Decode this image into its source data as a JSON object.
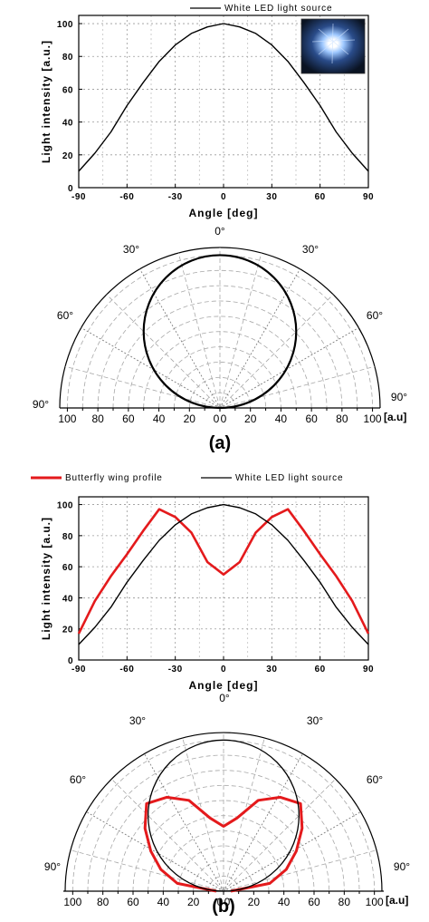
{
  "chart_data": [
    {
      "type": "line",
      "panel": "(a)",
      "legend": [
        "White LED light source"
      ],
      "xlabel": "Angle [deg]",
      "ylabel": "Light intensity [a.u.]",
      "xlim": [
        -90,
        90
      ],
      "ylim": [
        0,
        105
      ],
      "xticks": [
        "-90",
        "-60",
        "-30",
        "0",
        "30",
        "60",
        "90"
      ],
      "yticks": [
        "0",
        "20",
        "40",
        "60",
        "80",
        "100"
      ],
      "grid": true,
      "legend_position": "top-right",
      "inset_image": "white LED photo",
      "series": [
        {
          "name": "White LED light source",
          "color": "#000000",
          "x": [
            -90,
            -80,
            -70,
            -60,
            -50,
            -40,
            -30,
            -20,
            -10,
            0,
            10,
            20,
            30,
            40,
            50,
            60,
            70,
            80,
            90
          ],
          "y": [
            10,
            21,
            34,
            50,
            64,
            77,
            87,
            94,
            98,
            100,
            98,
            94,
            87,
            77,
            64,
            50,
            34,
            21,
            10
          ]
        }
      ]
    },
    {
      "type": "polar",
      "panel": "(a)",
      "angle_labels": [
        "0°",
        "30°",
        "30°",
        "60°",
        "60°",
        "90°",
        "90°"
      ],
      "radial_ticks": [
        "100",
        "80",
        "60",
        "40",
        "20",
        "0",
        "0",
        "20",
        "40",
        "60",
        "80",
        "100"
      ],
      "radial_unit": "[a.u]",
      "rmax": 105,
      "series": [
        {
          "name": "White LED light source",
          "color": "#000000",
          "shape": "cosine circle",
          "peak": 100
        }
      ]
    },
    {
      "type": "line",
      "panel": "(b)",
      "legend": [
        "Butterfly wing profile",
        "White LED light source"
      ],
      "xlabel": "Angle [deg]",
      "ylabel": "Light intensity [a.u.]",
      "xlim": [
        -90,
        90
      ],
      "ylim": [
        0,
        105
      ],
      "xticks": [
        "-90",
        "-60",
        "-30",
        "0",
        "30",
        "60",
        "90"
      ],
      "yticks": [
        "0",
        "20",
        "40",
        "60",
        "80",
        "100"
      ],
      "grid": true,
      "legend_position": "top",
      "series": [
        {
          "name": "Butterfly wing profile",
          "color": "#e41a1c",
          "x": [
            -90,
            -80,
            -70,
            -60,
            -50,
            -40,
            -30,
            -20,
            -10,
            0,
            10,
            20,
            30,
            40,
            50,
            60,
            70,
            80,
            90
          ],
          "y": [
            17,
            38,
            54,
            68,
            83,
            97,
            92,
            82,
            63,
            55,
            63,
            82,
            92,
            97,
            83,
            68,
            54,
            38,
            17
          ]
        },
        {
          "name": "White LED light source",
          "color": "#000000",
          "x": [
            -90,
            -80,
            -70,
            -60,
            -50,
            -40,
            -30,
            -20,
            -10,
            0,
            10,
            20,
            30,
            40,
            50,
            60,
            70,
            80,
            90
          ],
          "y": [
            10,
            21,
            34,
            50,
            64,
            77,
            87,
            94,
            98,
            100,
            98,
            94,
            87,
            77,
            64,
            50,
            34,
            21,
            10
          ]
        }
      ]
    },
    {
      "type": "polar",
      "panel": "(b)",
      "angle_labels": [
        "0°",
        "30°",
        "30°",
        "60°",
        "60°",
        "90°",
        "90°"
      ],
      "radial_ticks": [
        "100",
        "80",
        "60",
        "40",
        "20",
        "0",
        "0",
        "20",
        "40",
        "60",
        "80",
        "100"
      ],
      "radial_unit": "[a.u]",
      "rmax": 105,
      "series": [
        {
          "name": "Butterfly wing profile",
          "color": "#e41a1c",
          "shape": "butterfly"
        },
        {
          "name": "White LED light source",
          "color": "#000000",
          "shape": "cosine circle",
          "peak": 100
        }
      ]
    }
  ],
  "labels": {
    "panel_a": "(a)",
    "panel_b": "(b)"
  }
}
